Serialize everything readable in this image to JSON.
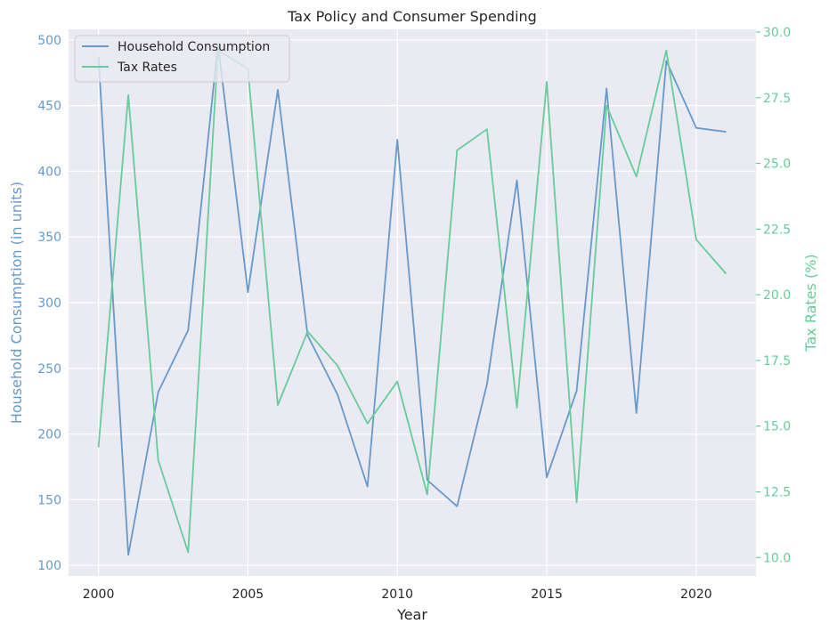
{
  "colors": {
    "plot_bg": "#eaeaf2",
    "grid": "#ffffff",
    "text": "#262626",
    "series_left": "#6699cc",
    "series_right": "#66cc99",
    "axis_left": "#6699cc",
    "axis_right": "#66cc99"
  },
  "chart_data": {
    "type": "line",
    "title": "Tax Policy and Consumer Spending",
    "xlabel": "Year",
    "ylabel_left": "Household Consumption (in units)",
    "ylabel_right": "Tax Rates (%)",
    "x": [
      2000,
      2001,
      2002,
      2003,
      2004,
      2005,
      2006,
      2007,
      2008,
      2009,
      2010,
      2011,
      2012,
      2013,
      2014,
      2015,
      2016,
      2017,
      2018,
      2019,
      2020,
      2021
    ],
    "xlim": [
      1999,
      2022
    ],
    "ylim_left": [
      92,
      508
    ],
    "ylim_right": [
      9.3,
      30.1
    ],
    "xticks": [
      2000,
      2005,
      2010,
      2015,
      2020
    ],
    "yticks_left": [
      100,
      150,
      200,
      250,
      300,
      350,
      400,
      450,
      500
    ],
    "yticks_right": [
      10.0,
      12.5,
      15.0,
      17.5,
      20.0,
      22.5,
      25.0,
      27.5,
      30.0
    ],
    "grid": true,
    "legend_position": "top-left",
    "series": [
      {
        "name": "Household Consumption",
        "axis": "left",
        "values": [
          487,
          108,
          232,
          279,
          497,
          308,
          462,
          275,
          230,
          160,
          424,
          165,
          145,
          238,
          393,
          167,
          233,
          463,
          216,
          484,
          433,
          430
        ]
      },
      {
        "name": "Tax Rates",
        "axis": "right",
        "values": [
          14.2,
          27.6,
          13.7,
          10.2,
          29.3,
          28.6,
          15.8,
          18.6,
          17.3,
          15.1,
          16.7,
          12.4,
          25.5,
          26.3,
          15.7,
          28.1,
          12.1,
          27.2,
          24.5,
          29.3,
          22.1,
          20.8
        ]
      }
    ]
  }
}
